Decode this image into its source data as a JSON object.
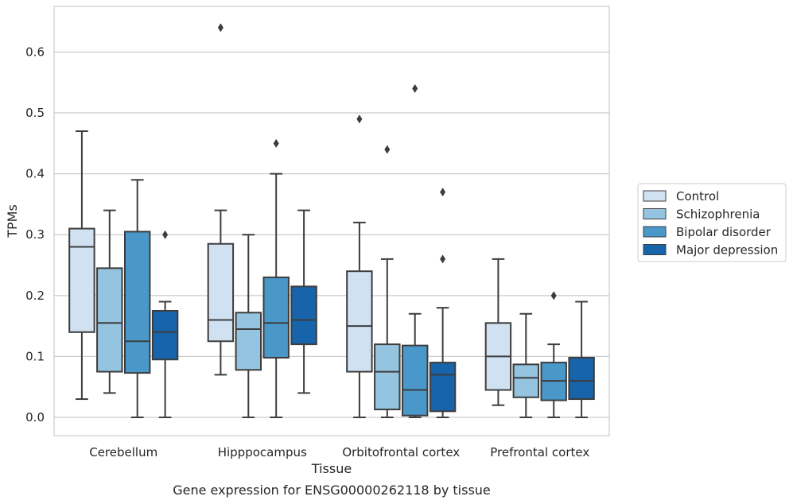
{
  "caption": "Gene expression for ENSG00000262118 by tissue",
  "chart_data": {
    "type": "box",
    "xlabel": "Tissue",
    "ylabel": "TPMs",
    "ylim": [
      -0.03,
      0.675
    ],
    "yticks": [
      0.0,
      0.1,
      0.2,
      0.3,
      0.4,
      0.5,
      0.6
    ],
    "ytick_labels": [
      "0.0",
      "0.1",
      "0.2",
      "0.3",
      "0.4",
      "0.5",
      "0.6"
    ],
    "grid": "horizontal",
    "legend_position": "right",
    "categories": [
      "Cerebellum",
      "Hipppocampus",
      "Orbitofrontal cortex",
      "Prefrontal cortex"
    ],
    "series": [
      {
        "name": "Control",
        "color": "#d0e1f2",
        "boxes": [
          {
            "whislo": 0.03,
            "q1": 0.14,
            "med": 0.28,
            "q3": 0.31,
            "whishi": 0.47,
            "fliers": []
          },
          {
            "whislo": 0.07,
            "q1": 0.125,
            "med": 0.16,
            "q3": 0.285,
            "whishi": 0.34,
            "fliers": [
              0.64
            ]
          },
          {
            "whislo": 0.0,
            "q1": 0.075,
            "med": 0.15,
            "q3": 0.24,
            "whishi": 0.32,
            "fliers": [
              0.49
            ]
          },
          {
            "whislo": 0.02,
            "q1": 0.045,
            "med": 0.1,
            "q3": 0.155,
            "whishi": 0.26,
            "fliers": []
          }
        ]
      },
      {
        "name": "Schizophrenia",
        "color": "#94c4df",
        "boxes": [
          {
            "whislo": 0.04,
            "q1": 0.075,
            "med": 0.155,
            "q3": 0.245,
            "whishi": 0.34,
            "fliers": []
          },
          {
            "whislo": 0.0,
            "q1": 0.078,
            "med": 0.145,
            "q3": 0.172,
            "whishi": 0.3,
            "fliers": []
          },
          {
            "whislo": 0.0,
            "q1": 0.013,
            "med": 0.075,
            "q3": 0.12,
            "whishi": 0.26,
            "fliers": [
              0.44
            ]
          },
          {
            "whislo": 0.0,
            "q1": 0.033,
            "med": 0.065,
            "q3": 0.087,
            "whishi": 0.17,
            "fliers": []
          }
        ]
      },
      {
        "name": "Bipolar disorder",
        "color": "#4a98c9",
        "boxes": [
          {
            "whislo": 0.0,
            "q1": 0.073,
            "med": 0.125,
            "q3": 0.305,
            "whishi": 0.39,
            "fliers": []
          },
          {
            "whislo": 0.0,
            "q1": 0.098,
            "med": 0.155,
            "q3": 0.23,
            "whishi": 0.4,
            "fliers": [
              0.45
            ]
          },
          {
            "whislo": 0.0,
            "q1": 0.003,
            "med": 0.045,
            "q3": 0.118,
            "whishi": 0.17,
            "fliers": [
              0.54
            ]
          },
          {
            "whislo": 0.0,
            "q1": 0.028,
            "med": 0.06,
            "q3": 0.09,
            "whishi": 0.12,
            "fliers": [
              0.2
            ]
          }
        ]
      },
      {
        "name": "Major depression",
        "color": "#1764ab",
        "boxes": [
          {
            "whislo": 0.0,
            "q1": 0.095,
            "med": 0.14,
            "q3": 0.175,
            "whishi": 0.19,
            "fliers": [
              0.3
            ]
          },
          {
            "whislo": 0.04,
            "q1": 0.12,
            "med": 0.16,
            "q3": 0.215,
            "whishi": 0.34,
            "fliers": []
          },
          {
            "whislo": 0.0,
            "q1": 0.01,
            "med": 0.07,
            "q3": 0.09,
            "whishi": 0.18,
            "fliers": [
              0.37,
              0.26
            ]
          },
          {
            "whislo": 0.0,
            "q1": 0.03,
            "med": 0.06,
            "q3": 0.098,
            "whishi": 0.19,
            "fliers": []
          }
        ]
      }
    ]
  }
}
